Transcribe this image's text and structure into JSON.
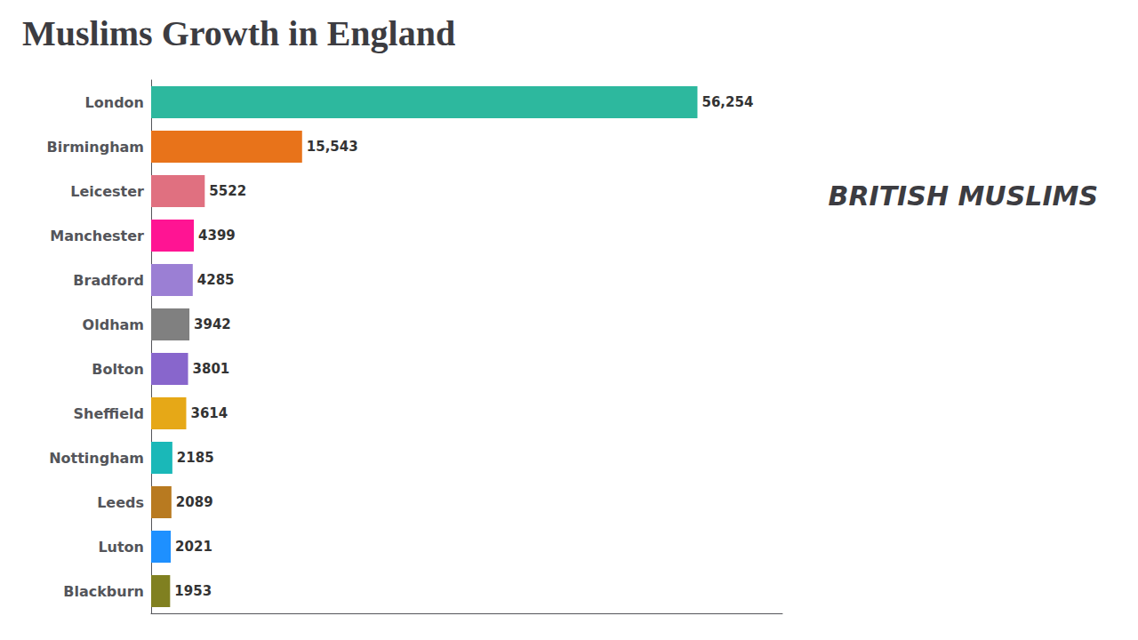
{
  "chart_data": {
    "type": "bar",
    "orientation": "horizontal",
    "title": "Muslims Growth in England",
    "subtitle": "BRITISH MUSLIMS",
    "categories": [
      "London",
      "Birmingham",
      "Leicester",
      "Manchester",
      "Bradford",
      "Oldham",
      "Bolton",
      "Sheffield",
      "Nottingham",
      "Leeds",
      "Luton",
      "Blackburn"
    ],
    "values": [
      56254,
      15543,
      5522,
      4399,
      4285,
      3942,
      3801,
      3614,
      2185,
      2089,
      2021,
      1953
    ],
    "value_labels": [
      "56,254",
      "15,543",
      "5522",
      "4399",
      "4285",
      "3942",
      "3801",
      "3614",
      "2185",
      "2089",
      "2021",
      "1953"
    ],
    "colors": [
      "#2db89e",
      "#e8731a",
      "#e07080",
      "#ff1493",
      "#9b7fd4",
      "#808080",
      "#8866cc",
      "#e6a817",
      "#1ab8b8",
      "#b87a20",
      "#1e90ff",
      "#808020"
    ],
    "xlim": [
      0,
      65000
    ],
    "data_labels": true,
    "tick_labels": "y",
    "grid": false
  }
}
